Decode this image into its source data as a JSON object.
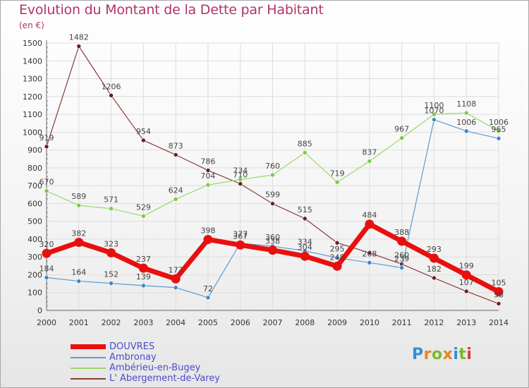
{
  "header": {
    "title": "Evolution du Montant de la Dette par Habitant",
    "unit": "(en €)"
  },
  "logo": {
    "letters": [
      "P",
      "r",
      "o",
      "x",
      "i",
      "t",
      "i"
    ],
    "colors": [
      "#2f8fd8",
      "#e8841a",
      "#7ab82e",
      "#e8841a",
      "#2f8fd8",
      "#7ab82e",
      "#d83a3a"
    ]
  },
  "colors": {
    "title": "#b0336a",
    "grid": "#dddddd",
    "axis_text": "#333333",
    "label_text": "#444444"
  },
  "chart_data": {
    "type": "line",
    "x": [
      2000,
      2001,
      2002,
      2003,
      2004,
      2005,
      2006,
      2007,
      2008,
      2009,
      2010,
      2011,
      2012,
      2013,
      2014
    ],
    "ylim": [
      0,
      1500
    ],
    "yticks": [
      0,
      100,
      200,
      300,
      400,
      500,
      600,
      700,
      800,
      900,
      1000,
      1100,
      1200,
      1300,
      1400,
      1500
    ],
    "grid": true,
    "legend_position": "bottom-left",
    "series": [
      {
        "name": "DOUVRES",
        "color": "#e8100e",
        "emphasis": true,
        "values": [
          320,
          382,
          323,
          237,
          177,
          398,
          367,
          338,
          304,
          248,
          484,
          388,
          293,
          199,
          105
        ],
        "labels": [
          "320",
          "382",
          "323",
          "237",
          "177",
          "398",
          "367",
          "338",
          "304",
          "248",
          "484",
          "388",
          "293",
          "199",
          "105"
        ]
      },
      {
        "name": "Ambronay",
        "color": "#5b9bd0",
        "marker": "#3a87c8",
        "values": [
          184,
          164,
          152,
          139,
          128,
          72,
          377,
          360,
          334,
          295,
          268,
          239,
          1070,
          1006,
          965
        ],
        "labels": [
          "184",
          "164",
          "152",
          "139",
          "",
          "72",
          "377",
          "360",
          "334",
          "295",
          "268",
          "239",
          "1070",
          "1006",
          "965"
        ]
      },
      {
        "name": "Ambérieu-en-Bugey",
        "color": "#9ad86a",
        "marker": "#7cc947",
        "values": [
          670,
          589,
          571,
          529,
          624,
          704,
          734,
          760,
          885,
          719,
          837,
          967,
          1100,
          1108,
          1006
        ],
        "labels": [
          "670",
          "589",
          "571",
          "529",
          "624",
          "704",
          "734",
          "760",
          "885",
          "719",
          "837",
          "967",
          "1100",
          "1108",
          "1006"
        ]
      },
      {
        "name": "L' Abergement-de-Varey",
        "color": "#8b3a3a",
        "marker": "#6b1f1f",
        "values": [
          919,
          1482,
          1206,
          954,
          873,
          786,
          710,
          599,
          515,
          379,
          323,
          260,
          182,
          107,
          38
        ],
        "labels": [
          "919",
          "1482",
          "1206",
          "954",
          "873",
          "786",
          "710",
          "599",
          "515",
          "",
          "",
          "260",
          "182",
          "107",
          "38"
        ]
      }
    ]
  }
}
